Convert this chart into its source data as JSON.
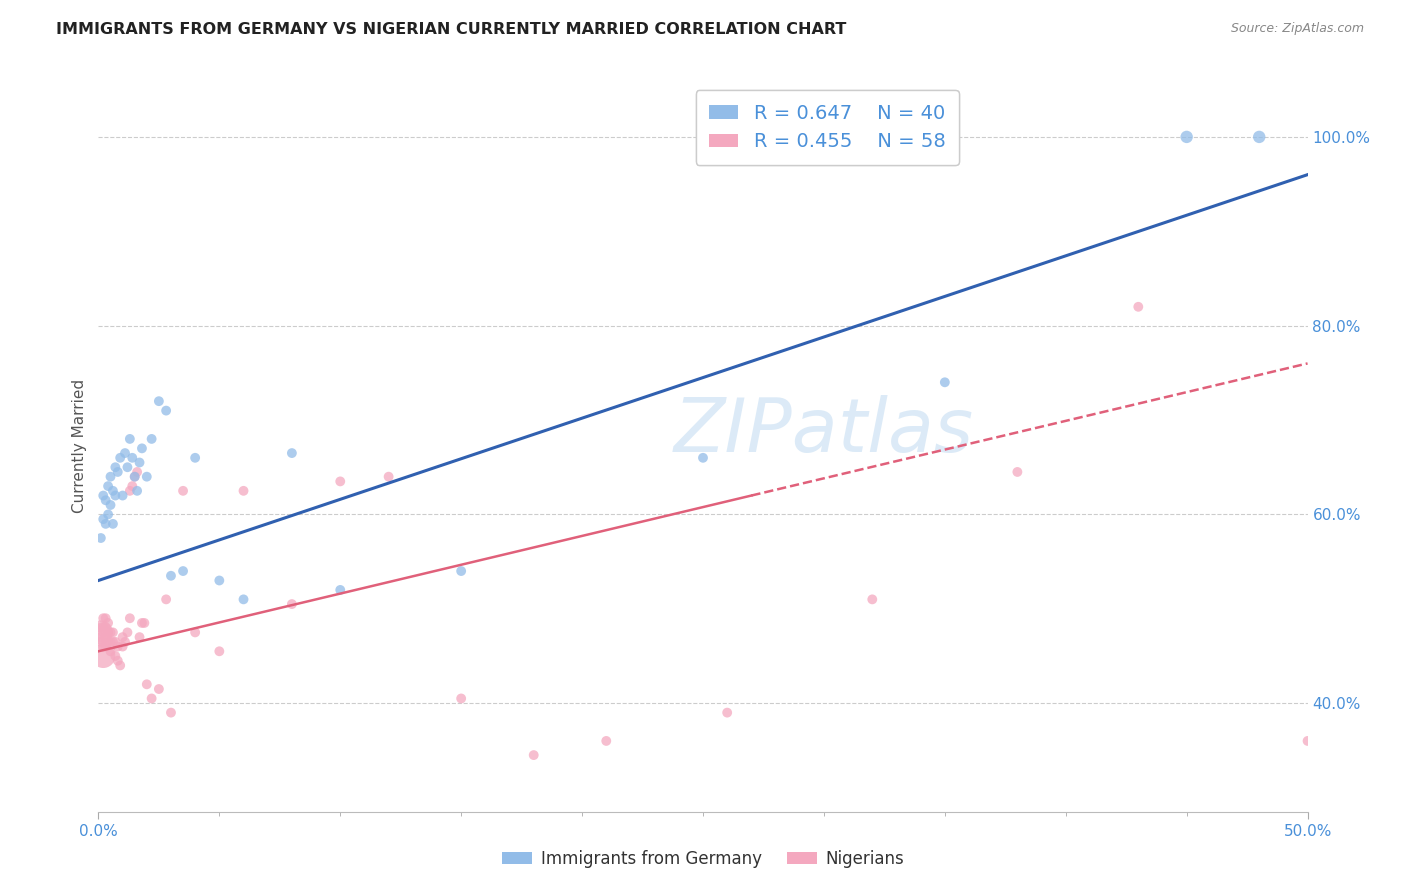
{
  "title": "IMMIGRANTS FROM GERMANY VS NIGERIAN CURRENTLY MARRIED CORRELATION CHART",
  "source": "Source: ZipAtlas.com",
  "ylabel": "Currently Married",
  "right_yticks": [
    "40.0%",
    "60.0%",
    "80.0%",
    "100.0%"
  ],
  "right_ytick_vals": [
    0.4,
    0.6,
    0.8,
    1.0
  ],
  "watermark": "ZIPatlas",
  "legend": {
    "blue_r": "0.647",
    "blue_n": "40",
    "pink_r": "0.455",
    "pink_n": "58"
  },
  "blue_color": "#92bce8",
  "pink_color": "#f4a8bf",
  "blue_line_color": "#3060b0",
  "pink_line_color": "#e0607a",
  "legend_text_color": "#4a90d9",
  "blue_scatter": {
    "x": [
      0.001,
      0.002,
      0.002,
      0.003,
      0.003,
      0.004,
      0.004,
      0.005,
      0.005,
      0.006,
      0.006,
      0.007,
      0.007,
      0.008,
      0.009,
      0.01,
      0.011,
      0.012,
      0.013,
      0.014,
      0.015,
      0.016,
      0.017,
      0.018,
      0.02,
      0.022,
      0.025,
      0.028,
      0.03,
      0.035,
      0.04,
      0.05,
      0.06,
      0.08,
      0.1,
      0.15,
      0.25,
      0.35,
      0.45,
      0.48
    ],
    "y": [
      0.575,
      0.595,
      0.62,
      0.59,
      0.615,
      0.6,
      0.63,
      0.61,
      0.64,
      0.625,
      0.59,
      0.65,
      0.62,
      0.645,
      0.66,
      0.62,
      0.665,
      0.65,
      0.68,
      0.66,
      0.64,
      0.625,
      0.655,
      0.67,
      0.64,
      0.68,
      0.72,
      0.71,
      0.535,
      0.54,
      0.66,
      0.53,
      0.51,
      0.665,
      0.52,
      0.54,
      0.66,
      0.74,
      1.0,
      1.0
    ],
    "sizes": [
      50,
      50,
      50,
      50,
      50,
      50,
      50,
      50,
      50,
      50,
      50,
      50,
      50,
      50,
      50,
      50,
      50,
      50,
      50,
      50,
      50,
      50,
      50,
      50,
      50,
      50,
      50,
      50,
      50,
      50,
      50,
      50,
      50,
      50,
      50,
      50,
      50,
      50,
      80,
      80
    ]
  },
  "pink_scatter": {
    "x": [
      0.001,
      0.001,
      0.001,
      0.001,
      0.002,
      0.002,
      0.002,
      0.002,
      0.002,
      0.003,
      0.003,
      0.003,
      0.003,
      0.004,
      0.004,
      0.004,
      0.005,
      0.005,
      0.005,
      0.006,
      0.006,
      0.007,
      0.007,
      0.008,
      0.008,
      0.009,
      0.01,
      0.01,
      0.011,
      0.012,
      0.013,
      0.013,
      0.014,
      0.015,
      0.016,
      0.017,
      0.018,
      0.019,
      0.02,
      0.022,
      0.025,
      0.028,
      0.03,
      0.035,
      0.04,
      0.05,
      0.06,
      0.08,
      0.1,
      0.12,
      0.15,
      0.18,
      0.21,
      0.26,
      0.32,
      0.38,
      0.43,
      0.5
    ],
    "y": [
      0.475,
      0.48,
      0.47,
      0.465,
      0.45,
      0.46,
      0.475,
      0.48,
      0.49,
      0.46,
      0.47,
      0.48,
      0.49,
      0.465,
      0.475,
      0.485,
      0.455,
      0.465,
      0.475,
      0.465,
      0.475,
      0.45,
      0.465,
      0.445,
      0.46,
      0.44,
      0.46,
      0.47,
      0.465,
      0.475,
      0.625,
      0.49,
      0.63,
      0.64,
      0.645,
      0.47,
      0.485,
      0.485,
      0.42,
      0.405,
      0.415,
      0.51,
      0.39,
      0.625,
      0.475,
      0.455,
      0.625,
      0.505,
      0.635,
      0.64,
      0.405,
      0.345,
      0.36,
      0.39,
      0.51,
      0.645,
      0.82,
      0.36
    ],
    "sizes": [
      300,
      50,
      50,
      50,
      300,
      50,
      50,
      50,
      50,
      50,
      50,
      50,
      50,
      50,
      50,
      50,
      50,
      50,
      50,
      50,
      50,
      50,
      50,
      50,
      50,
      50,
      50,
      50,
      50,
      50,
      50,
      50,
      50,
      50,
      50,
      50,
      50,
      50,
      50,
      50,
      50,
      50,
      50,
      50,
      50,
      50,
      50,
      50,
      50,
      50,
      50,
      50,
      50,
      50,
      50,
      50,
      50,
      50
    ]
  },
  "blue_line": {
    "x0": 0.0,
    "y0": 0.53,
    "x1": 0.5,
    "y1": 0.96
  },
  "pink_line_solid": {
    "x0": 0.0,
    "y0": 0.455,
    "x1": 0.27,
    "y1": 0.62
  },
  "pink_line_dashed": {
    "x0": 0.27,
    "y0": 0.62,
    "x1": 0.5,
    "y1": 0.76
  },
  "xlim": [
    0.0,
    0.5
  ],
  "ylim": [
    0.285,
    1.06
  ],
  "grid_color": "#cccccc",
  "background_color": "#ffffff",
  "xtick_positions": [
    0.0,
    0.5
  ],
  "xtick_labels": [
    "0.0%",
    "50.0%"
  ]
}
